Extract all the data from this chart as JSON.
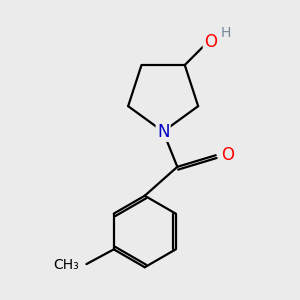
{
  "background_color": "#ebebeb",
  "bond_color": "#000000",
  "bond_width": 1.6,
  "atom_colors": {
    "O": "#ff0000",
    "N": "#0000cc",
    "H": "#778899",
    "C": "#000000"
  },
  "font_size_atoms": 12,
  "font_size_h": 10
}
